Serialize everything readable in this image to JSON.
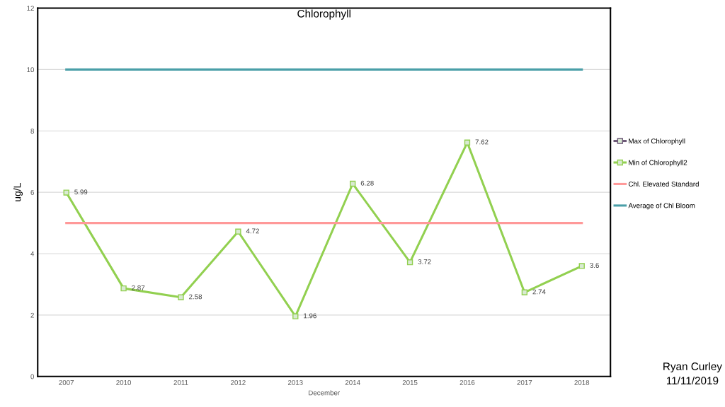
{
  "chart_data": {
    "type": "line",
    "title": "Chlorophyll",
    "xlabel": "December",
    "ylabel": "ug/L",
    "categories": [
      "2007",
      "2010",
      "2011",
      "2012",
      "2013",
      "2014",
      "2015",
      "2016",
      "2017",
      "2018"
    ],
    "series": [
      {
        "name": "Max of Chlorophyll",
        "color": "#6e5a78",
        "marker": "square",
        "values": [
          null,
          null,
          null,
          null,
          null,
          null,
          null,
          null,
          null,
          null
        ]
      },
      {
        "name": "Min of Chlorophyll2",
        "color": "#92d050",
        "marker": "square",
        "values": [
          5.99,
          2.87,
          2.58,
          4.72,
          1.96,
          6.28,
          3.72,
          7.62,
          2.74,
          3.6
        ],
        "value_labels": [
          "5.99",
          "2.87",
          "2.58",
          "4.72",
          "1.96",
          "6.28",
          "3.72",
          "7.62",
          "2.74",
          "3.6"
        ]
      },
      {
        "name": "Chl. Elevated Standard",
        "color": "#ff9999",
        "marker": "none",
        "values": [
          5,
          5,
          5,
          5,
          5,
          5,
          5,
          5,
          5,
          5
        ]
      },
      {
        "name": "Average of Chl Bloom",
        "color": "#4a9fa8",
        "marker": "none",
        "values": [
          10,
          10,
          10,
          10,
          10,
          10,
          10,
          10,
          10,
          10
        ]
      }
    ],
    "ylim": [
      0,
      12
    ],
    "yticks": [
      0,
      2,
      4,
      6,
      8,
      10,
      12
    ],
    "grid": "y",
    "legend": "right",
    "annotations": [
      "Ryan Curley",
      "11/11/2019"
    ]
  }
}
